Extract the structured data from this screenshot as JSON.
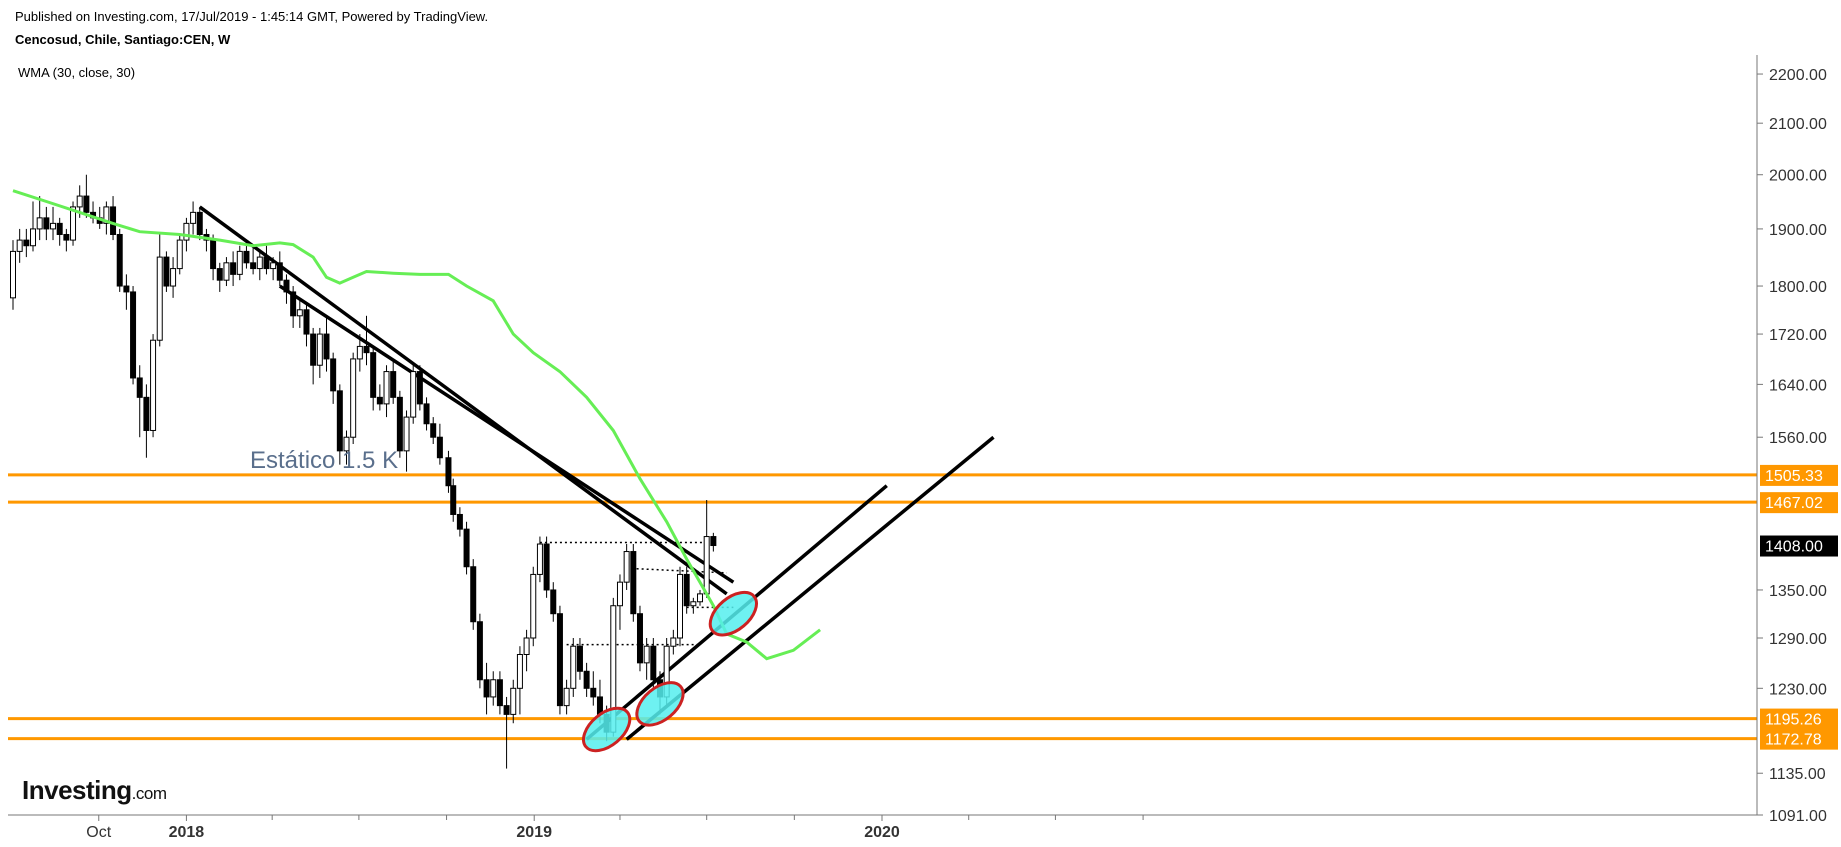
{
  "header": {
    "published": "Published on Investing.com, 17/Jul/2019 - 1:45:14 GMT, Powered by TradingView.",
    "symbol": "Cencosud, Chile, Santiago:CEN, W",
    "indicator": "WMA (30, close, 30)"
  },
  "logo": {
    "brand": "Investing",
    "domain": ".com"
  },
  "chart_data": {
    "type": "candlestick",
    "title": "",
    "y_axis": {
      "ticks": [
        "2200.00",
        "2100.00",
        "2000.00",
        "1900.00",
        "1800.00",
        "1720.00",
        "1640.00",
        "1560.00",
        "1350.00",
        "1290.00",
        "1230.00",
        "1135.00",
        "1091.00"
      ],
      "scale": "log",
      "range": [
        1091,
        2240
      ]
    },
    "x_axis": {
      "ticks": [
        {
          "label": "Oct",
          "bold": false
        },
        {
          "label": "2018",
          "bold": true
        },
        {
          "label": "2019",
          "bold": true
        },
        {
          "label": "2020",
          "bold": true
        }
      ]
    },
    "last_price": {
      "value": "1408.00",
      "color": "#000000"
    },
    "horizontal_levels": [
      {
        "value": 1505.33,
        "label": "1505.33",
        "color": "#ff9800"
      },
      {
        "value": 1467.02,
        "label": "1467.02",
        "color": "#ff9800"
      },
      {
        "value": 1195.26,
        "label": "1195.26",
        "color": "#ff9800"
      },
      {
        "value": 1172.78,
        "label": "1172.78",
        "color": "#ff9800"
      }
    ],
    "annotation": "Estático 1.5 K",
    "series_colors": {
      "wma": "#66ee55",
      "candles_up": "#ffffff",
      "candles_down": "#000000",
      "highlight": "#55eeee",
      "highlight_border": "#cc2222"
    },
    "candles": [
      [
        "2017-07-03",
        1780,
        1880,
        1760,
        1860
      ],
      [
        "2017-07-10",
        1860,
        1900,
        1840,
        1880
      ],
      [
        "2017-07-17",
        1880,
        1900,
        1850,
        1870
      ],
      [
        "2017-07-24",
        1870,
        1950,
        1860,
        1900
      ],
      [
        "2017-07-31",
        1900,
        1960,
        1880,
        1920
      ],
      [
        "2017-08-07",
        1920,
        1940,
        1880,
        1900
      ],
      [
        "2017-08-14",
        1900,
        1940,
        1880,
        1910
      ],
      [
        "2017-08-21",
        1910,
        1920,
        1870,
        1890
      ],
      [
        "2017-08-28",
        1890,
        1900,
        1860,
        1880
      ],
      [
        "2017-09-04",
        1880,
        1950,
        1870,
        1940
      ],
      [
        "2017-09-11",
        1940,
        1980,
        1920,
        1960
      ],
      [
        "2017-09-18",
        1960,
        2000,
        1920,
        1930
      ],
      [
        "2017-09-25",
        1930,
        1950,
        1910,
        1920
      ],
      [
        "2017-10-02",
        1920,
        1940,
        1900,
        1910
      ],
      [
        "2017-10-09",
        1910,
        1950,
        1890,
        1940
      ],
      [
        "2017-10-16",
        1940,
        1960,
        1880,
        1890
      ],
      [
        "2017-10-23",
        1890,
        1900,
        1790,
        1800
      ],
      [
        "2017-10-30",
        1800,
        1820,
        1760,
        1790
      ],
      [
        "2017-11-06",
        1790,
        1800,
        1640,
        1650
      ],
      [
        "2017-11-13",
        1650,
        1670,
        1560,
        1620
      ],
      [
        "2017-11-20",
        1620,
        1640,
        1530,
        1570
      ],
      [
        "2017-11-27",
        1570,
        1720,
        1560,
        1710
      ],
      [
        "2017-12-04",
        1710,
        1890,
        1700,
        1850
      ],
      [
        "2017-12-11",
        1850,
        1860,
        1790,
        1800
      ],
      [
        "2017-12-18",
        1800,
        1850,
        1780,
        1830
      ],
      [
        "2017-12-25",
        1830,
        1890,
        1820,
        1880
      ],
      [
        "2018-01-01",
        1880,
        1920,
        1860,
        1910
      ],
      [
        "2018-01-08",
        1910,
        1950,
        1890,
        1930
      ],
      [
        "2018-01-15",
        1930,
        1940,
        1880,
        1890
      ],
      [
        "2018-01-22",
        1890,
        1900,
        1860,
        1880
      ],
      [
        "2018-01-29",
        1880,
        1890,
        1810,
        1830
      ],
      [
        "2018-02-05",
        1830,
        1840,
        1790,
        1810
      ],
      [
        "2018-02-12",
        1810,
        1850,
        1800,
        1840
      ],
      [
        "2018-02-19",
        1840,
        1860,
        1800,
        1820
      ],
      [
        "2018-02-26",
        1820,
        1870,
        1810,
        1860
      ],
      [
        "2018-03-05",
        1860,
        1880,
        1830,
        1840
      ],
      [
        "2018-03-12",
        1840,
        1870,
        1820,
        1830
      ],
      [
        "2018-03-19",
        1830,
        1860,
        1810,
        1850
      ],
      [
        "2018-03-26",
        1850,
        1870,
        1820,
        1830
      ],
      [
        "2018-04-02",
        1830,
        1850,
        1810,
        1840
      ],
      [
        "2018-04-09",
        1840,
        1860,
        1800,
        1810
      ],
      [
        "2018-04-16",
        1810,
        1820,
        1770,
        1790
      ],
      [
        "2018-04-23",
        1790,
        1800,
        1730,
        1750
      ],
      [
        "2018-04-30",
        1750,
        1780,
        1730,
        1760
      ],
      [
        "2018-05-07",
        1760,
        1770,
        1700,
        1720
      ],
      [
        "2018-05-14",
        1720,
        1730,
        1640,
        1670
      ],
      [
        "2018-05-21",
        1670,
        1730,
        1650,
        1720
      ],
      [
        "2018-05-28",
        1720,
        1750,
        1660,
        1680
      ],
      [
        "2018-06-04",
        1680,
        1690,
        1610,
        1630
      ],
      [
        "2018-06-11",
        1630,
        1640,
        1520,
        1540
      ],
      [
        "2018-06-18",
        1540,
        1570,
        1520,
        1560
      ],
      [
        "2018-06-25",
        1560,
        1690,
        1550,
        1680
      ],
      [
        "2018-07-02",
        1680,
        1720,
        1660,
        1700
      ],
      [
        "2018-07-09",
        1700,
        1750,
        1670,
        1690
      ],
      [
        "2018-07-16",
        1690,
        1700,
        1600,
        1620
      ],
      [
        "2018-07-23",
        1620,
        1640,
        1600,
        1610
      ],
      [
        "2018-07-30",
        1610,
        1670,
        1590,
        1660
      ],
      [
        "2018-08-06",
        1660,
        1680,
        1610,
        1620
      ],
      [
        "2018-08-13",
        1620,
        1630,
        1530,
        1540
      ],
      [
        "2018-08-20",
        1540,
        1600,
        1510,
        1590
      ],
      [
        "2018-08-27",
        1590,
        1670,
        1580,
        1660
      ],
      [
        "2018-09-03",
        1660,
        1670,
        1600,
        1610
      ],
      [
        "2018-09-10",
        1610,
        1620,
        1570,
        1580
      ],
      [
        "2018-09-17",
        1580,
        1590,
        1550,
        1560
      ],
      [
        "2018-09-24",
        1560,
        1580,
        1520,
        1530
      ],
      [
        "2018-10-03",
        1530,
        1540,
        1480,
        1490
      ],
      [
        "2018-10-08",
        1490,
        1500,
        1440,
        1450
      ],
      [
        "2018-10-15",
        1450,
        1460,
        1420,
        1430
      ],
      [
        "2018-10-22",
        1430,
        1440,
        1370,
        1380
      ],
      [
        "2018-10-29",
        1380,
        1390,
        1300,
        1310
      ],
      [
        "2018-11-05",
        1310,
        1320,
        1230,
        1240
      ],
      [
        "2018-11-12",
        1240,
        1260,
        1200,
        1220
      ],
      [
        "2018-11-19",
        1220,
        1250,
        1210,
        1240
      ],
      [
        "2018-11-26",
        1240,
        1250,
        1200,
        1210
      ],
      [
        "2018-12-03",
        1210,
        1220,
        1140,
        1200
      ],
      [
        "2018-12-10",
        1200,
        1240,
        1190,
        1230
      ],
      [
        "2018-12-17",
        1230,
        1280,
        1200,
        1270
      ],
      [
        "2018-12-24",
        1270,
        1300,
        1250,
        1290
      ],
      [
        "2018-12-31",
        1290,
        1380,
        1280,
        1370
      ],
      [
        "2019-01-07",
        1370,
        1420,
        1360,
        1410
      ],
      [
        "2019-01-14",
        1410,
        1420,
        1340,
        1350
      ],
      [
        "2019-01-21",
        1350,
        1360,
        1310,
        1320
      ],
      [
        "2019-01-28",
        1320,
        1330,
        1200,
        1210
      ],
      [
        "2019-02-04",
        1210,
        1240,
        1200,
        1230
      ],
      [
        "2019-02-11",
        1230,
        1290,
        1220,
        1280
      ],
      [
        "2019-02-18",
        1280,
        1290,
        1240,
        1250
      ],
      [
        "2019-02-25",
        1250,
        1260,
        1220,
        1230
      ],
      [
        "2019-03-04",
        1230,
        1250,
        1210,
        1220
      ],
      [
        "2019-03-11",
        1220,
        1240,
        1190,
        1200
      ],
      [
        "2019-03-18",
        1200,
        1210,
        1170,
        1180
      ],
      [
        "2019-03-25",
        1180,
        1340,
        1175,
        1330
      ],
      [
        "2019-04-01",
        1330,
        1370,
        1300,
        1360
      ],
      [
        "2019-04-08",
        1360,
        1410,
        1350,
        1400
      ],
      [
        "2019-04-15",
        1400,
        1410,
        1310,
        1320
      ],
      [
        "2019-04-22",
        1320,
        1330,
        1250,
        1260
      ],
      [
        "2019-04-29",
        1260,
        1290,
        1240,
        1280
      ],
      [
        "2019-05-06",
        1280,
        1290,
        1230,
        1240
      ],
      [
        "2019-05-13",
        1240,
        1250,
        1200,
        1220
      ],
      [
        "2019-05-20",
        1220,
        1290,
        1210,
        1280
      ],
      [
        "2019-05-27",
        1280,
        1300,
        1270,
        1290
      ],
      [
        "2019-06-03",
        1290,
        1380,
        1280,
        1370
      ],
      [
        "2019-06-10",
        1370,
        1380,
        1320,
        1330
      ],
      [
        "2019-06-17",
        1330,
        1340,
        1320,
        1335
      ],
      [
        "2019-06-24",
        1335,
        1350,
        1330,
        1345
      ],
      [
        "2019-07-01",
        1345,
        1470,
        1340,
        1420
      ],
      [
        "2019-07-08",
        1420,
        1425,
        1400,
        1408
      ]
    ],
    "wma_line": [
      [
        "2017-07-03",
        1970
      ],
      [
        "2017-08-07",
        1950
      ],
      [
        "2017-09-11",
        1930
      ],
      [
        "2017-10-16",
        1910
      ],
      [
        "2017-11-13",
        1895
      ],
      [
        "2017-12-25",
        1890
      ],
      [
        "2018-02-05",
        1880
      ],
      [
        "2018-03-12",
        1870
      ],
      [
        "2018-04-09",
        1875
      ],
      [
        "2018-04-23",
        1872
      ],
      [
        "2018-05-14",
        1850
      ],
      [
        "2018-05-28",
        1815
      ],
      [
        "2018-06-11",
        1805
      ],
      [
        "2018-06-25",
        1815
      ],
      [
        "2018-07-09",
        1825
      ],
      [
        "2018-08-06",
        1822
      ],
      [
        "2018-09-03",
        1820
      ],
      [
        "2018-10-03",
        1820
      ],
      [
        "2018-10-22",
        1800
      ],
      [
        "2018-11-19",
        1775
      ],
      [
        "2018-12-10",
        1720
      ],
      [
        "2018-12-31",
        1690
      ],
      [
        "2019-01-28",
        1660
      ],
      [
        "2019-02-25",
        1620
      ],
      [
        "2019-03-25",
        1570
      ],
      [
        "2019-04-22",
        1500
      ],
      [
        "2019-05-20",
        1440
      ],
      [
        "2019-06-10",
        1390
      ],
      [
        "2019-07-08",
        1330
      ],
      [
        "2019-07-22",
        1295
      ],
      [
        "2019-08-12",
        1285
      ],
      [
        "2019-09-02",
        1265
      ],
      [
        "2019-09-30",
        1275
      ],
      [
        "2019-10-28",
        1300
      ]
    ],
    "trendlines": [
      {
        "from": [
          "2018-01-15",
          1940
        ],
        "to": [
          "2019-07-22",
          1345
        ]
      },
      {
        "from": [
          "2018-04-09",
          1800
        ],
        "to": [
          "2019-07-29",
          1360
        ]
      },
      {
        "from": [
          "2019-02-25",
          1172
        ],
        "to": [
          "2020-01-06",
          1490
        ]
      },
      {
        "from": [
          "2019-04-08",
          1172
        ],
        "to": [
          "2020-04-27",
          1560
        ]
      }
    ],
    "dotted_lines": [
      {
        "from": [
          "2019-01-07",
          1412
        ],
        "to": [
          "2019-07-01",
          1412
        ]
      },
      {
        "from": [
          "2019-04-08",
          1378
        ],
        "to": [
          "2019-07-22",
          1372
        ]
      },
      {
        "from": [
          "2019-06-10",
          1328
        ],
        "to": [
          "2019-07-29",
          1328
        ]
      },
      {
        "from": [
          "2019-02-04",
          1282
        ],
        "to": [
          "2019-06-24",
          1282
        ]
      }
    ],
    "highlights": [
      {
        "date": "2019-03-18",
        "price": 1183
      },
      {
        "date": "2019-05-13",
        "price": 1212
      },
      {
        "date": "2019-07-29",
        "price": 1320
      }
    ]
  }
}
